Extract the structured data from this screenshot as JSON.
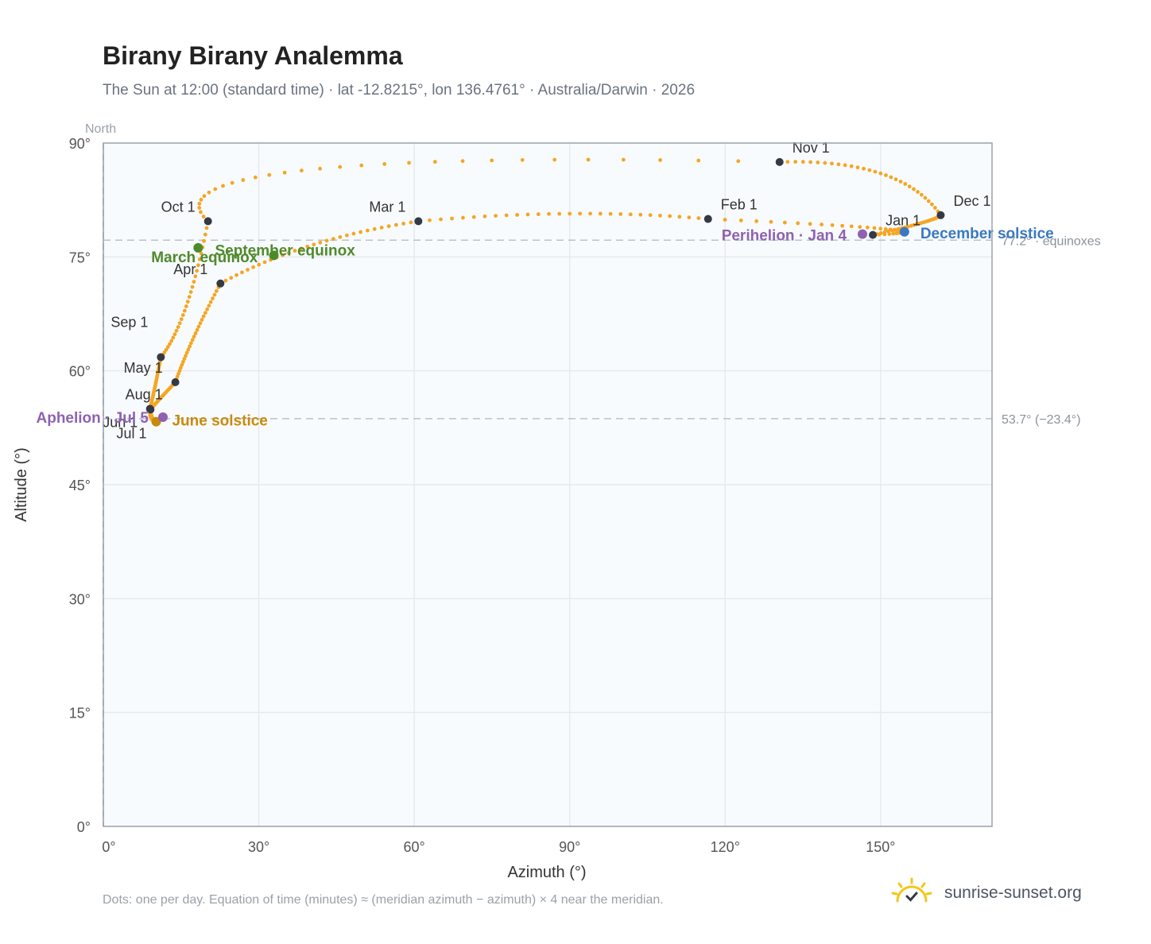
{
  "title": "Birany Birany Analemma",
  "subtitle": "The Sun at 12:00 (standard time) · lat -12.8215°, lon 136.4761° · Australia/Darwin · 2026",
  "footnote": "Dots: one per day. Equation of time (minutes) ≈ (meridian azimuth − azimuth) × 4 near the meridian.",
  "brand": {
    "name": "sunrise-sunset.org",
    "icon": "sun-check-icon"
  },
  "colors": {
    "path": "#f5a623",
    "month": "#333a45",
    "equinox": "#4f8a2b",
    "june": "#c98a0b",
    "december": "#3a78c0",
    "aphelion": "#8e62b0",
    "grid": "#e6e9ee",
    "ref": "#b8c2cc",
    "plot_bg": "#f8fbfe"
  },
  "chart_data": {
    "type": "scatter",
    "xlabel": "Azimuth (°)",
    "ylabel": "Altitude (°)",
    "xlim": [
      0,
      171.5
    ],
    "ylim": [
      0,
      90
    ],
    "x_ticks": [
      "0°",
      "30°",
      "60°",
      "90°",
      "120°",
      "150°"
    ],
    "y_ticks": [
      "0°",
      "15°",
      "30°",
      "45°",
      "60°",
      "75°",
      "90°"
    ],
    "north_label": "North",
    "grid": true,
    "reference_lines": [
      {
        "y": 77.2,
        "label": "77.2° · equinoxes"
      },
      {
        "y": 53.7,
        "label": "53.7° (−23.4°)"
      }
    ],
    "months": [
      {
        "label": "Jan 1",
        "x": 148.5,
        "y": 77.9
      },
      {
        "label": "Feb 1",
        "x": 116.7,
        "y": 80.0
      },
      {
        "label": "Mar 1",
        "x": 60.8,
        "y": 79.7
      },
      {
        "label": "Apr 1",
        "x": 22.6,
        "y": 71.5
      },
      {
        "label": "May 1",
        "x": 13.9,
        "y": 58.5
      },
      {
        "label": "Jun 1",
        "x": 9.1,
        "y": 54.9
      },
      {
        "label": "Jul 1",
        "x": 10.2,
        "y": 53.2
      },
      {
        "label": "Aug 1",
        "x": 9.0,
        "y": 55.0
      },
      {
        "label": "Sep 1",
        "x": 11.1,
        "y": 61.8
      },
      {
        "label": "Oct 1",
        "x": 20.2,
        "y": 79.7
      },
      {
        "label": "Nov 1",
        "x": 130.5,
        "y": 87.5
      },
      {
        "label": "Dec 1",
        "x": 161.6,
        "y": 80.5
      }
    ],
    "events": [
      {
        "label": "March equinox",
        "x": 18.3,
        "y": 76.2,
        "kind": "equinox"
      },
      {
        "label": "September equinox",
        "x": 32.9,
        "y": 75.2,
        "kind": "equinox"
      },
      {
        "label": "June solstice",
        "x": 10.2,
        "y": 53.3,
        "kind": "june"
      },
      {
        "label": "December solstice",
        "x": 154.6,
        "y": 78.3,
        "kind": "december"
      },
      {
        "label": "Perihelion · Jan 4",
        "x": 146.5,
        "y": 78.0,
        "kind": "aphelion"
      },
      {
        "label": "Aphelion · Jul 5",
        "x": 11.5,
        "y": 53.9,
        "kind": "aphelion"
      }
    ]
  }
}
